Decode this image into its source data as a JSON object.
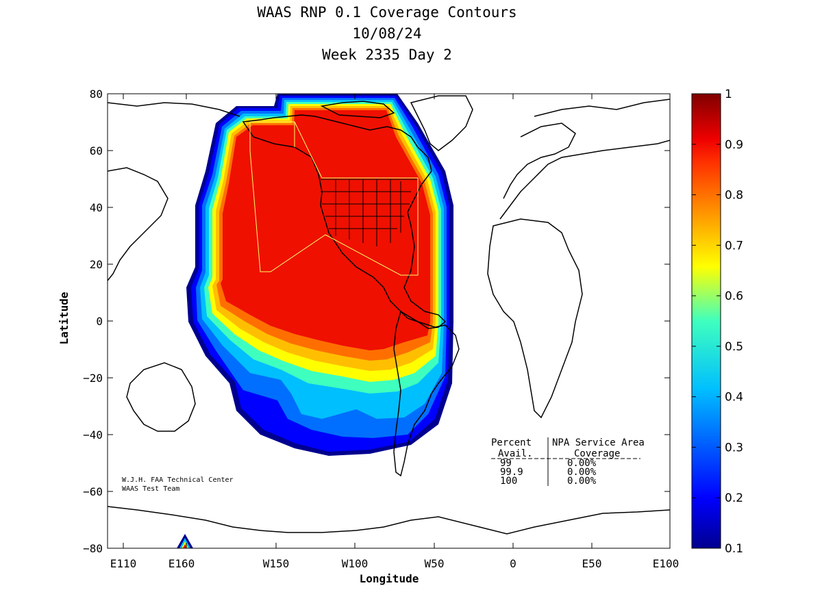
{
  "chart_data": {
    "type": "heatmap",
    "title": "WAAS RNP 0.1 Coverage Contours",
    "subtitle_date": "10/08/24",
    "subtitle_week": "Week 2335 Day 2",
    "xlabel": "Longitude",
    "ylabel": "Latitude",
    "x_ticks": [
      "E110",
      "E160",
      "W150",
      "W100",
      "W50",
      "0",
      "E50",
      "E100"
    ],
    "y_ticks": [
      "80",
      "60",
      "40",
      "20",
      "0",
      "−20",
      "−40",
      "−60",
      "−80"
    ],
    "ylim": [
      -80,
      80
    ],
    "colorbar": {
      "min": 0.1,
      "max": 1,
      "ticks": [
        "1",
        "0.9",
        "0.8",
        "0.7",
        "0.6",
        "0.5",
        "0.4",
        "0.3",
        "0.2",
        "0.1"
      ]
    },
    "credit_line1": "W.J.H. FAA Technical Center",
    "credit_line2": "WAAS Test Team",
    "coverage_table": {
      "header1_col1": "Percent",
      "header1_col2": "NPA Service Area",
      "header2_col1": "Avail.",
      "header2_col2": "Coverage",
      "rows": [
        {
          "avail": "99",
          "coverage": "0.00%"
        },
        {
          "avail": "99.9",
          "coverage": "0.00%"
        },
        {
          "avail": "100",
          "coverage": "0.00%"
        }
      ]
    }
  }
}
